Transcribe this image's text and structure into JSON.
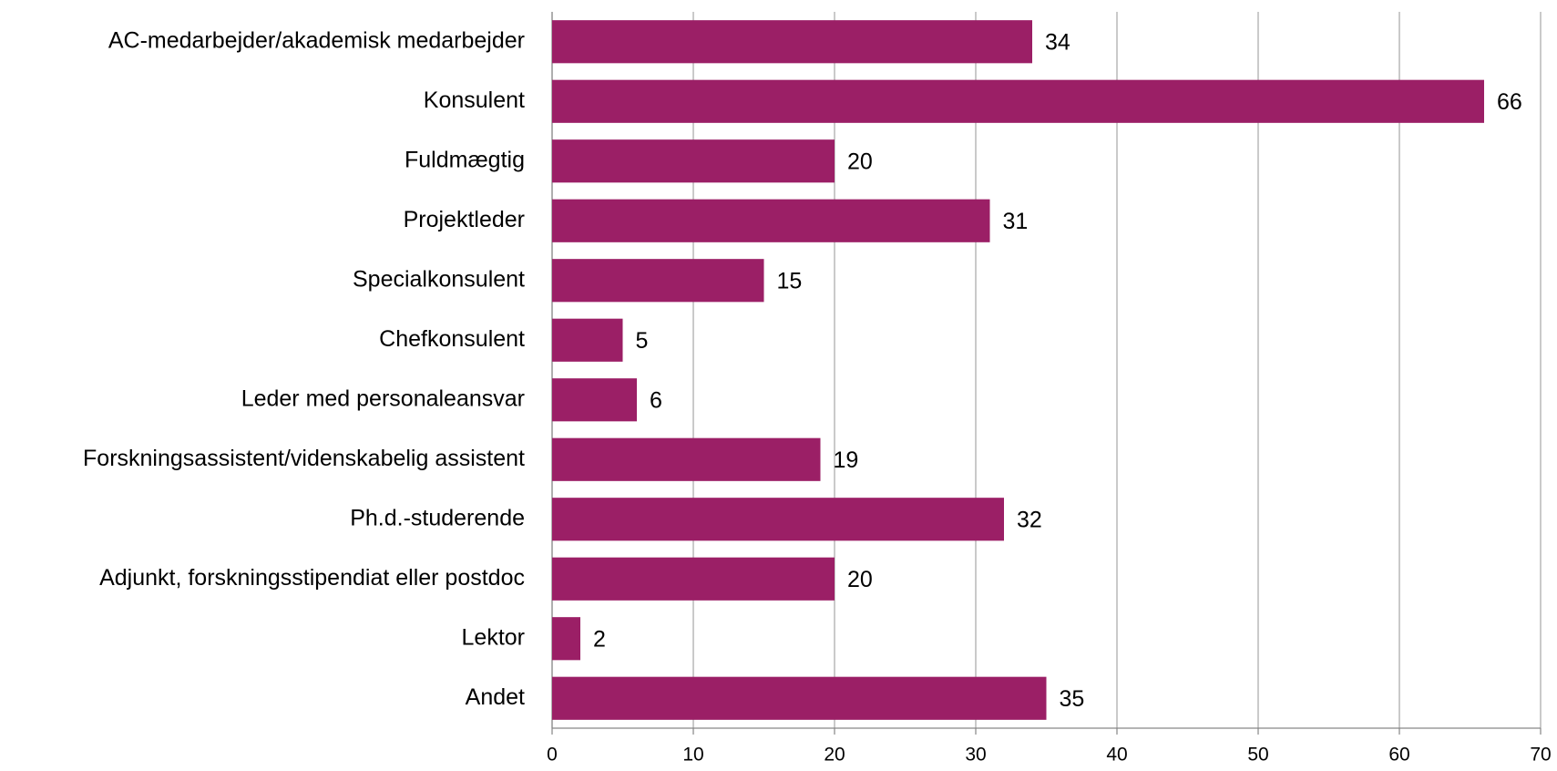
{
  "chart_data": {
    "type": "barh",
    "categories": [
      "AC-medarbejder/akademisk medarbejder",
      "Konsulent",
      "Fuldmægtig",
      "Projektleder",
      "Specialkonsulent",
      "Chefkonsulent",
      "Leder med personaleansvar",
      "Forskningsassistent/videnskabelig assistent",
      "Ph.d.-studerende",
      "Adjunkt, forskningsstipendiat eller postdoc",
      "Lektor",
      "Andet"
    ],
    "values": [
      34,
      66,
      20,
      31,
      15,
      5,
      6,
      19,
      32,
      20,
      2,
      35
    ],
    "color": "#9b1f66",
    "xlim": [
      0,
      70
    ],
    "xticks": [
      0,
      10,
      20,
      30,
      40,
      50,
      60,
      70
    ],
    "grid": true
  }
}
